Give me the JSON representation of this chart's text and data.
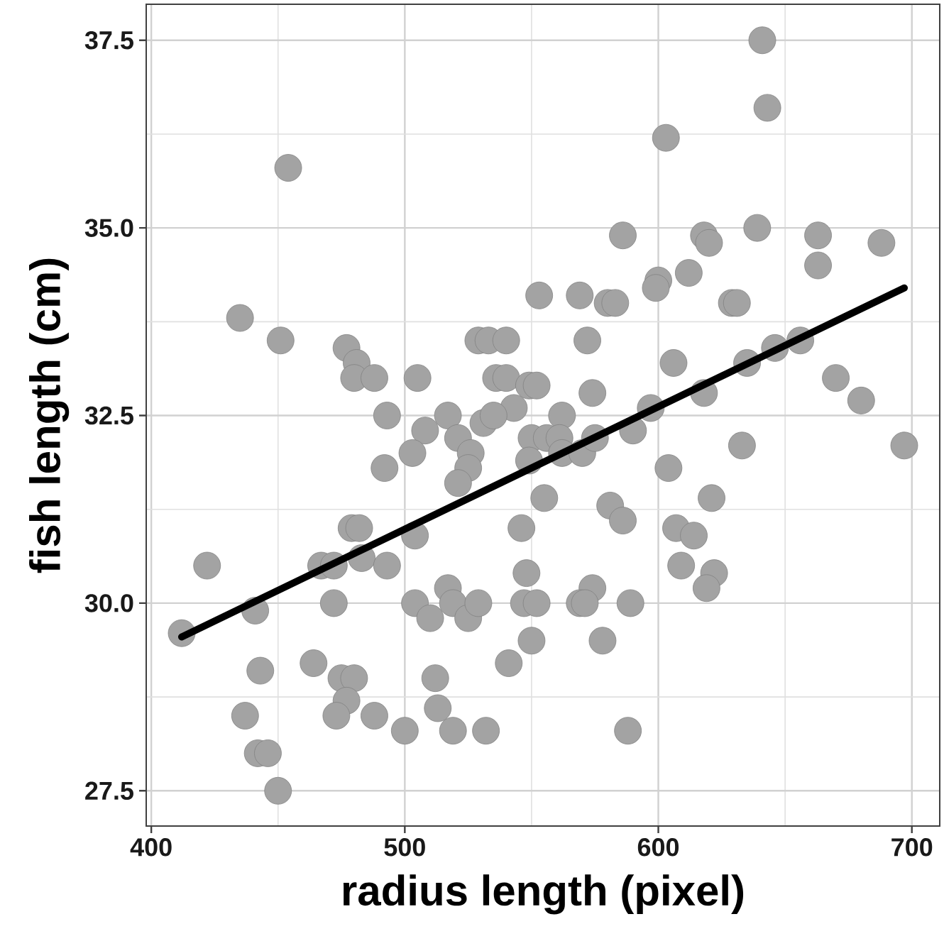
{
  "chart_data": {
    "type": "scatter",
    "xlabel": "radius length (pixel)",
    "ylabel": "fish length (cm)",
    "xlim": [
      398,
      711
    ],
    "ylim": [
      27.03,
      37.98
    ],
    "xticks": [
      400,
      500,
      600,
      700
    ],
    "yticks": [
      {
        "value": 27.5,
        "label": "27.5"
      },
      {
        "value": 30,
        "label": "30.0"
      },
      {
        "value": 32.5,
        "label": "32.5"
      },
      {
        "value": 35,
        "label": "35.0"
      },
      {
        "value": 37.5,
        "label": "37.5"
      }
    ],
    "grid": true,
    "series": [
      {
        "marker": "circle",
        "color": "#a3a3a3",
        "x": [
          454,
          435,
          451,
          553,
          529,
          533,
          540,
          477,
          481,
          480,
          488,
          505,
          536,
          540,
          549,
          552,
          543,
          493,
          508,
          517,
          531,
          535,
          641,
          643,
          603,
          586,
          618,
          620,
          639,
          663,
          663,
          688,
          569,
          580,
          583,
          600,
          599,
          612,
          629,
          631,
          572,
          606,
          574,
          562,
          597,
          618,
          635,
          646,
          656,
          670,
          680,
          503,
          492,
          521,
          526,
          525,
          521,
          550,
          556,
          549,
          555,
          546,
          479,
          482,
          422,
          467,
          472,
          483,
          493,
          504,
          441,
          472,
          412,
          504,
          510,
          517,
          519,
          525,
          529,
          548,
          547,
          552,
          550,
          541,
          443,
          464,
          475,
          480,
          477,
          437,
          473,
          488,
          512,
          513,
          500,
          519,
          532,
          442,
          446,
          450,
          581,
          586,
          604,
          621,
          607,
          614,
          609,
          622,
          619,
          633,
          697,
          574,
          569,
          571,
          589,
          578,
          588,
          590,
          561,
          562,
          570,
          575
        ],
        "values": [
          35.8,
          33.8,
          33.5,
          34.1,
          33.5,
          33.5,
          33.5,
          33.4,
          33.2,
          33.0,
          33.0,
          33.0,
          33.0,
          33.0,
          32.9,
          32.9,
          32.6,
          32.5,
          32.3,
          32.5,
          32.4,
          32.5,
          37.5,
          36.6,
          36.2,
          34.9,
          34.9,
          34.8,
          35.0,
          34.9,
          34.5,
          34.8,
          34.1,
          34.0,
          34.0,
          34.3,
          34.2,
          34.4,
          34.0,
          34.0,
          33.5,
          33.2,
          32.8,
          32.5,
          32.6,
          32.8,
          33.2,
          33.4,
          33.5,
          33.0,
          32.7,
          32.0,
          31.8,
          32.2,
          32.0,
          31.8,
          31.6,
          32.2,
          32.2,
          31.9,
          31.4,
          31.0,
          31.0,
          31.0,
          30.5,
          30.5,
          30.5,
          30.6,
          30.5,
          30.9,
          29.9,
          30.0,
          29.6,
          30.0,
          29.8,
          30.2,
          30.0,
          29.8,
          30.0,
          30.4,
          30.0,
          30.0,
          29.5,
          29.2,
          29.1,
          29.2,
          29.0,
          29.0,
          28.7,
          28.5,
          28.5,
          28.5,
          29.0,
          28.6,
          28.3,
          28.3,
          28.3,
          28.0,
          28.0,
          27.5,
          31.3,
          31.1,
          31.8,
          31.4,
          31.0,
          30.9,
          30.5,
          30.4,
          30.2,
          32.1,
          32.1,
          30.2,
          30.0,
          30.0,
          30.0,
          29.5,
          28.3,
          32.3,
          32.2,
          32.0,
          32.0,
          32.2
        ]
      },
      {
        "type": "line",
        "marker": "none",
        "color": "#000000",
        "x": [
          412,
          697
        ],
        "values": [
          29.55,
          34.2
        ]
      }
    ]
  }
}
